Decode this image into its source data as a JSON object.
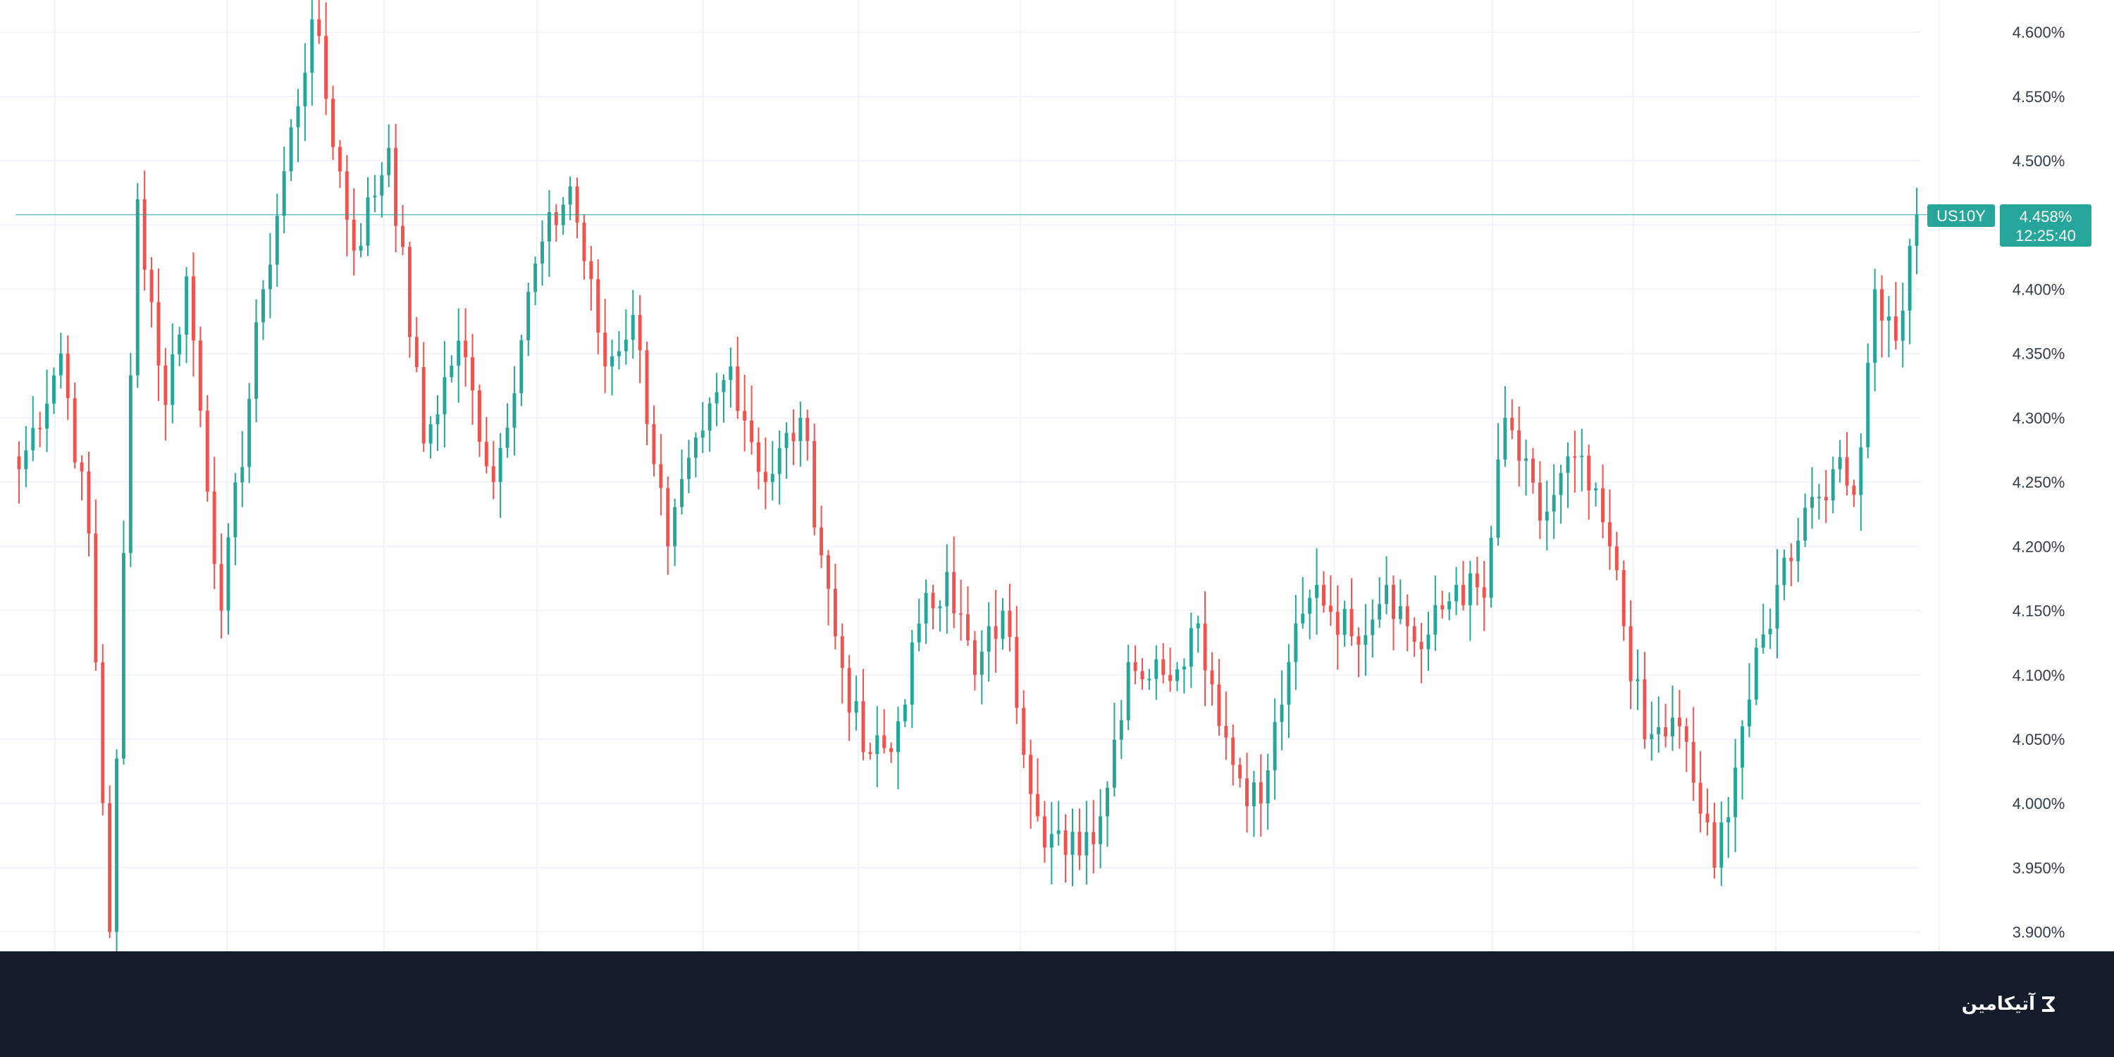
{
  "chart_data": {
    "type": "candlestick",
    "symbol": "US10Y",
    "last_price_label": "4.458%",
    "countdown_label": "12:25:40",
    "last_price": 4.458,
    "ylim": [
      3.885,
      4.625
    ],
    "y_ticks": [
      "4.600%",
      "4.550%",
      "4.500%",
      "4.450%",
      "4.400%",
      "4.350%",
      "4.300%",
      "4.250%",
      "4.200%",
      "4.150%",
      "4.100%",
      "4.050%",
      "4.000%",
      "3.950%",
      "3.900%"
    ],
    "y_tick_values": [
      4.6,
      4.55,
      4.5,
      4.45,
      4.4,
      4.35,
      4.3,
      4.25,
      4.2,
      4.15,
      4.1,
      4.05,
      4.0,
      3.95,
      3.9
    ],
    "grid": true,
    "x_labels": [],
    "xlabel": "",
    "ylabel": "",
    "colors": {
      "up": "#26a69a",
      "down": "#ef5350",
      "price_line": "#26a69a",
      "grid": "#f0f3fa"
    },
    "anchors": [
      [
        0,
        4.26
      ],
      [
        6,
        4.35
      ],
      [
        10,
        4.21
      ],
      [
        13,
        3.9
      ],
      [
        17,
        4.47
      ],
      [
        21,
        4.31
      ],
      [
        24,
        4.41
      ],
      [
        29,
        4.15
      ],
      [
        35,
        4.4
      ],
      [
        42,
        4.61
      ],
      [
        48,
        4.43
      ],
      [
        53,
        4.51
      ],
      [
        58,
        4.28
      ],
      [
        63,
        4.36
      ],
      [
        68,
        4.25
      ],
      [
        74,
        4.42
      ],
      [
        79,
        4.48
      ],
      [
        84,
        4.34
      ],
      [
        88,
        4.38
      ],
      [
        93,
        4.2
      ],
      [
        98,
        4.29
      ],
      [
        102,
        4.34
      ],
      [
        107,
        4.25
      ],
      [
        112,
        4.3
      ],
      [
        117,
        4.13
      ],
      [
        121,
        4.04
      ],
      [
        125,
        4.04
      ],
      [
        129,
        4.14
      ],
      [
        133,
        4.18
      ],
      [
        137,
        4.1
      ],
      [
        141,
        4.15
      ],
      [
        146,
        3.99
      ],
      [
        150,
        3.96
      ],
      [
        155,
        3.99
      ],
      [
        159,
        4.11
      ],
      [
        164,
        4.1
      ],
      [
        169,
        4.14
      ],
      [
        174,
        4.03
      ],
      [
        178,
        4.0
      ],
      [
        182,
        4.11
      ],
      [
        186,
        4.17
      ],
      [
        191,
        4.13
      ],
      [
        196,
        4.17
      ],
      [
        201,
        4.12
      ],
      [
        206,
        4.17
      ],
      [
        210,
        4.16
      ],
      [
        213,
        4.3
      ],
      [
        218,
        4.22
      ],
      [
        223,
        4.27
      ],
      [
        228,
        4.2
      ],
      [
        233,
        4.05
      ],
      [
        238,
        4.06
      ],
      [
        243,
        3.95
      ],
      [
        247,
        4.06
      ],
      [
        252,
        4.17
      ],
      [
        256,
        4.23
      ],
      [
        260,
        4.26
      ],
      [
        263,
        4.24
      ],
      [
        266,
        4.4
      ],
      [
        269,
        4.36
      ],
      [
        272,
        4.458
      ]
    ]
  },
  "footer": {
    "logo_text": "آتیکامین"
  }
}
